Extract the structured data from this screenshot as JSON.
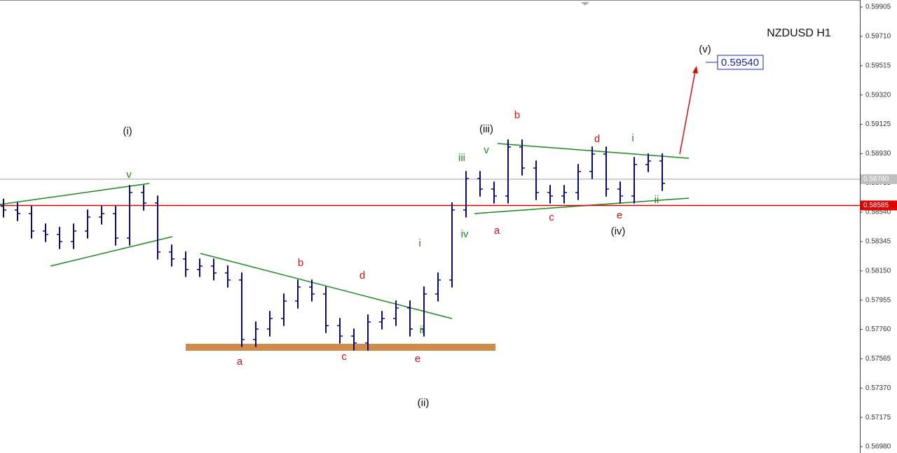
{
  "chart_data": {
    "type": "ohlc",
    "title": "NZDUSD H1",
    "color": "#0a0a6e",
    "open": [
      0.5858,
      0.58555,
      0.58531,
      0.58415,
      0.58392,
      0.58345,
      0.58415,
      0.58508,
      0.58531,
      0.58368,
      0.58671,
      0.58601,
      0.58275,
      0.58229,
      0.58159,
      0.58182,
      0.58136,
      0.58089,
      0.57693,
      0.57763,
      0.57833,
      0.57949,
      0.58042,
      0.57996,
      0.57786,
      0.57716,
      0.5767,
      0.5781,
      0.57833,
      0.57903,
      0.57763,
      0.57996,
      0.58089,
      0.58555,
      0.58764,
      0.58694,
      0.58648,
      0.58974,
      0.58834,
      0.58671,
      0.58648,
      0.58671,
      0.58811,
      0.58927,
      0.58694,
      0.58648,
      0.58857,
      0.58881
    ],
    "high": [
      0.5863,
      0.58605,
      0.58581,
      0.58465,
      0.58442,
      0.58465,
      0.58558,
      0.58581,
      0.58581,
      0.58721,
      0.58721,
      0.58651,
      0.58325,
      0.58279,
      0.58232,
      0.58232,
      0.58186,
      0.58139,
      0.57813,
      0.57883,
      0.57999,
      0.58092,
      0.58092,
      0.58046,
      0.57836,
      0.57766,
      0.5786,
      0.57883,
      0.57953,
      0.57953,
      0.58046,
      0.58139,
      0.58605,
      0.58814,
      0.58814,
      0.58744,
      0.59024,
      0.59024,
      0.58884,
      0.58721,
      0.58721,
      0.58861,
      0.58977,
      0.58977,
      0.58744,
      0.58907,
      0.58931,
      0.58931
    ],
    "low": [
      0.58505,
      0.58481,
      0.58365,
      0.58342,
      0.58295,
      0.58295,
      0.58365,
      0.58458,
      0.58318,
      0.58318,
      0.58551,
      0.58225,
      0.58179,
      0.58109,
      0.58109,
      0.58086,
      0.58039,
      0.57643,
      0.57643,
      0.57713,
      0.57783,
      0.57899,
      0.57946,
      0.57736,
      0.57666,
      0.5762,
      0.5762,
      0.5776,
      0.57783,
      0.57713,
      0.57713,
      0.57946,
      0.58039,
      0.58505,
      0.58644,
      0.58598,
      0.58598,
      0.58784,
      0.58621,
      0.58598,
      0.58598,
      0.58621,
      0.58761,
      0.58644,
      0.58598,
      0.58598,
      0.58807,
      0.58682
    ],
    "close": [
      0.58555,
      0.58531,
      0.58415,
      0.58392,
      0.58345,
      0.58415,
      0.58508,
      0.58531,
      0.58368,
      0.58671,
      0.58601,
      0.58275,
      0.58229,
      0.58159,
      0.58182,
      0.58136,
      0.58089,
      0.57693,
      0.57763,
      0.57833,
      0.57949,
      0.58042,
      0.57996,
      0.57786,
      0.57716,
      0.5767,
      0.5781,
      0.57833,
      0.57903,
      0.57763,
      0.57996,
      0.58089,
      0.58555,
      0.58764,
      0.58694,
      0.58648,
      0.58974,
      0.58834,
      0.58671,
      0.58648,
      0.58671,
      0.58811,
      0.58927,
      0.58694,
      0.58648,
      0.58857,
      0.58881,
      0.58732
    ],
    "ylim": [
      0.56938,
      0.59952
    ],
    "yticks": [
      0.59905,
      {
        "value": 0.5971,
        "label": "0.59710"
      },
      0.59515,
      {
        "value": 0.5932,
        "label": "0.59320"
      },
      0.59125,
      {
        "value": 0.5893,
        "label": "0.58930"
      },
      0.58735,
      {
        "value": 0.5854,
        "label": "0.58540"
      },
      0.58345,
      {
        "value": 0.5815,
        "label": "0.58150"
      },
      0.57955,
      {
        "value": 0.5776,
        "label": "0.57760"
      },
      0.57565,
      {
        "value": 0.5737,
        "label": "0.57370"
      },
      0.57175,
      {
        "value": 0.5698,
        "label": "0.56980"
      }
    ],
    "price_lines": [
      {
        "value": 0.5876,
        "label": "0.58760",
        "color": "#c0c0c0"
      },
      {
        "value": 0.58585,
        "color": "#e00000"
      }
    ],
    "annotations": [
      "(i)",
      "v",
      "(ii)",
      "a",
      "b",
      "c",
      "d",
      "e",
      "i",
      "ii",
      "iii",
      "v",
      "iv",
      "(iii)",
      "a",
      "b",
      "c",
      "d",
      "e",
      "(iv)",
      "i",
      "ii",
      "(v)",
      "0.59540"
    ]
  }
}
